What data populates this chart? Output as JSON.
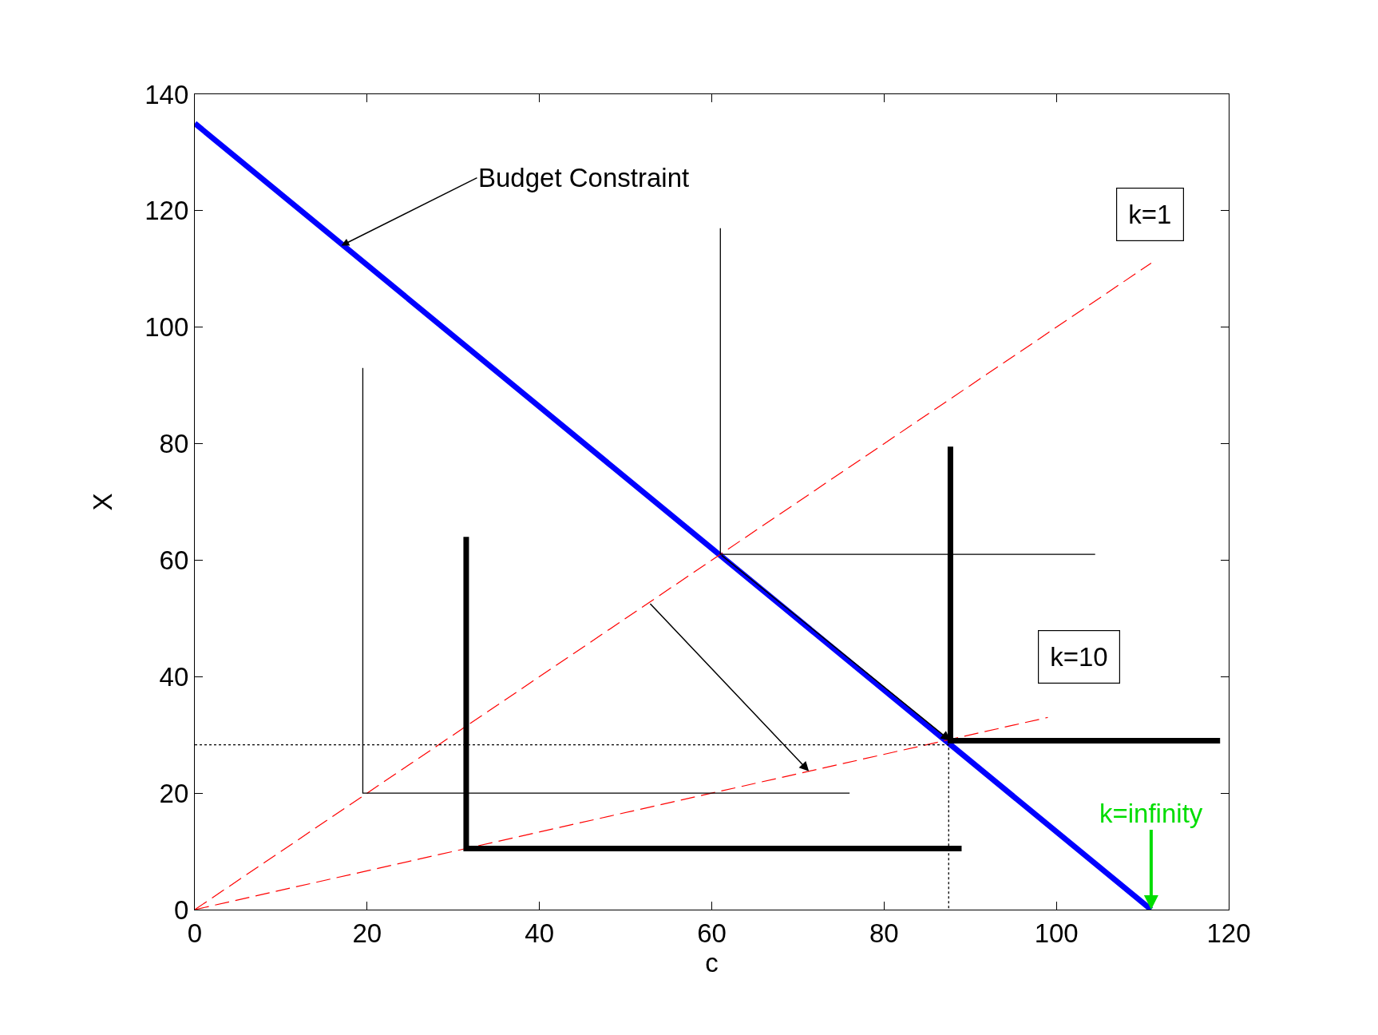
{
  "chart_data": {
    "type": "line",
    "xlabel": "c",
    "ylabel": "X",
    "series": [
      {
        "color": "#0000ff",
        "x": [
          0,
          111
        ],
        "values": [
          135,
          0
        ],
        "line_style": "solid"
      },
      {
        "color": "#ff0000",
        "x": [
          0,
          111
        ],
        "values": [
          0,
          111
        ],
        "line_style": "dashed"
      },
      {
        "color": "#ff0000",
        "x": [
          0,
          99
        ],
        "values": [
          0,
          33
        ],
        "line_style": "dashed"
      },
      {
        "color": "#000000",
        "x": [
          19.5,
          19.5,
          76
        ],
        "values": [
          93,
          20,
          20
        ],
        "line_style": "solid"
      },
      {
        "color": "#000000",
        "x": [
          61,
          61,
          104.5
        ],
        "values": [
          117,
          61,
          61
        ],
        "line_style": "solid"
      },
      {
        "color": "#000000",
        "x": [
          31.5,
          31.5,
          89
        ],
        "values": [
          64,
          10.5,
          10.5
        ],
        "line_style": "solid"
      },
      {
        "color": "#000000",
        "x": [
          87.7,
          87.7,
          119
        ],
        "values": [
          79.5,
          29,
          29
        ],
        "line_style": "solid"
      },
      {
        "color": "#000000",
        "x": [
          0,
          87.5,
          87.5
        ],
        "values": [
          28.3,
          28.3,
          0
        ],
        "line_style": "dotted"
      }
    ],
    "annotations": [
      {
        "text": "Budget Constraint",
        "x": 17,
        "y": 114
      },
      "k=1",
      "k=10",
      {
        "text": "k=infinity",
        "x": 111,
        "y": 0
      }
    ],
    "xlim": [
      0,
      120
    ],
    "ylim": [
      0,
      140
    ],
    "xticks": [
      0,
      20,
      40,
      60,
      80,
      100,
      120
    ],
    "yticks": [
      0,
      20,
      40,
      60,
      80,
      100,
      120,
      140
    ],
    "marker": "none"
  }
}
